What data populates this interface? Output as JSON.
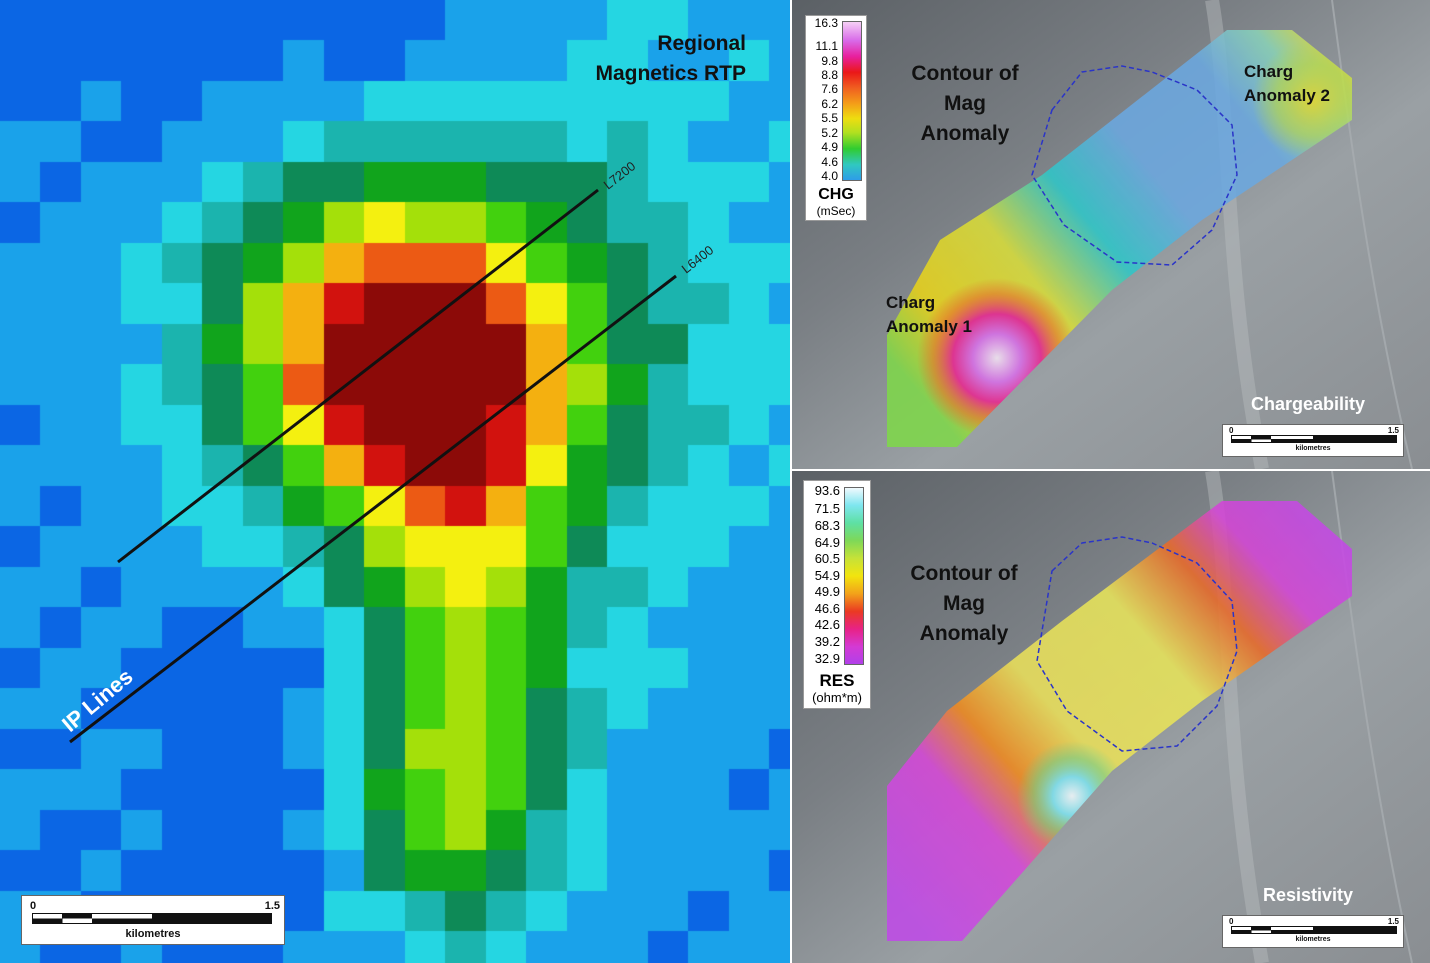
{
  "left_panel": {
    "title_line1": "Regional",
    "title_line2": "Magnetics RTP",
    "line_labels": [
      "L7200",
      "L6400"
    ],
    "ip_lines_label": "IP Lines",
    "scale": {
      "start": "0",
      "end": "1.5",
      "unit": "kilometres"
    }
  },
  "chargeability_panel": {
    "contour_label_line1": "Contour of",
    "contour_label_line2": "Mag",
    "contour_label_line3": "Anomaly",
    "anomaly1_line1": "Charg",
    "anomaly1_line2": "Anomaly 1",
    "anomaly2_line1": "Charg",
    "anomaly2_line2": "Anomaly 2",
    "panel_label": "Chargeability",
    "legend": {
      "values": [
        "16.3",
        "11.1",
        "9.8",
        "8.8",
        "7.6",
        "6.2",
        "5.5",
        "5.2",
        "4.9",
        "4.6",
        "4.0"
      ],
      "colors": [
        "#f6d2f6",
        "#d86ae8",
        "#e8209e",
        "#ea1818",
        "#f06020",
        "#f4a018",
        "#eedd10",
        "#b0e020",
        "#30cc30",
        "#30c8c0",
        "#2e9bea"
      ],
      "title": "CHG",
      "unit": "(mSec)"
    },
    "scale": {
      "start": "0",
      "end": "1.5",
      "unit": "kilometres"
    }
  },
  "resistivity_panel": {
    "contour_label_line1": "Contour of",
    "contour_label_line2": "Mag",
    "contour_label_line3": "Anomaly",
    "panel_label": "Resistivity",
    "legend": {
      "values": [
        "93.6",
        "71.5",
        "68.3",
        "64.9",
        "60.5",
        "54.9",
        "49.9",
        "46.6",
        "42.6",
        "39.2",
        "32.9"
      ],
      "colors": [
        "#f4fafe",
        "#7fe6f0",
        "#5ee0a4",
        "#7ed858",
        "#c6e238",
        "#f2e40e",
        "#f2a21a",
        "#ea3a22",
        "#e82286",
        "#d43ad4",
        "#b040ea"
      ],
      "title": "RES",
      "unit": "(ohm*m)"
    },
    "scale": {
      "start": "0",
      "end": "1.5",
      "unit": "kilometres"
    }
  },
  "colors": {
    "mag_ramp": [
      "#1136d6",
      "#0b66e4",
      "#1aa2ea",
      "#25d6e2",
      "#1bb4ae",
      "#0e8a57",
      "#11a41c",
      "#42d10e",
      "#a4e00a",
      "#f4f010",
      "#f4b010",
      "#ec5a14",
      "#d2120e",
      "#8c0a08"
    ],
    "mag_anomaly_contour": "#2a34c8"
  }
}
